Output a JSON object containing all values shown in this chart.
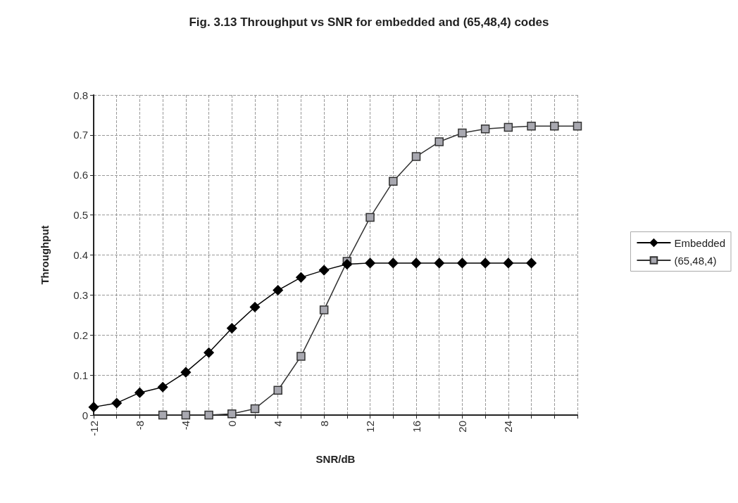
{
  "chart_data": {
    "type": "line",
    "title": "Fig. 3.13 Throughput vs SNR for embedded and (65,48,4) codes",
    "xlabel": "SNR/dB",
    "ylabel": "Throughput",
    "categories": [
      "-12",
      null,
      "-8",
      null,
      "-4",
      null,
      "0",
      null,
      "4",
      null,
      "8",
      null,
      "12",
      null,
      "16",
      null,
      "20",
      null,
      "24",
      null,
      null,
      null
    ],
    "series": [
      {
        "name": "Embedded",
        "color": "#000000",
        "marker": "diamond",
        "values": [
          0.02,
          0.03,
          0.056,
          0.07,
          0.107,
          0.156,
          0.217,
          0.27,
          0.312,
          0.344,
          0.362,
          0.377,
          0.38,
          0.38,
          0.38,
          0.38,
          0.38,
          0.38,
          0.38,
          0.38,
          null,
          null
        ]
      },
      {
        "name": "(65,48,4)",
        "color": "#333333",
        "marker": "square",
        "values": [
          null,
          null,
          null,
          0,
          0,
          0,
          0.003,
          0.016,
          0.062,
          0.147,
          0.263,
          0.384,
          0.494,
          0.584,
          0.646,
          0.683,
          0.705,
          0.715,
          0.719,
          0.722,
          0.722,
          0.722
        ]
      }
    ],
    "ylim": [
      0,
      0.8
    ],
    "yticks": [
      0,
      0.1,
      0.2,
      0.3,
      0.4,
      0.5,
      0.6,
      0.7,
      0.8
    ],
    "grid": true,
    "legend": "right",
    "line_style": "solid"
  }
}
